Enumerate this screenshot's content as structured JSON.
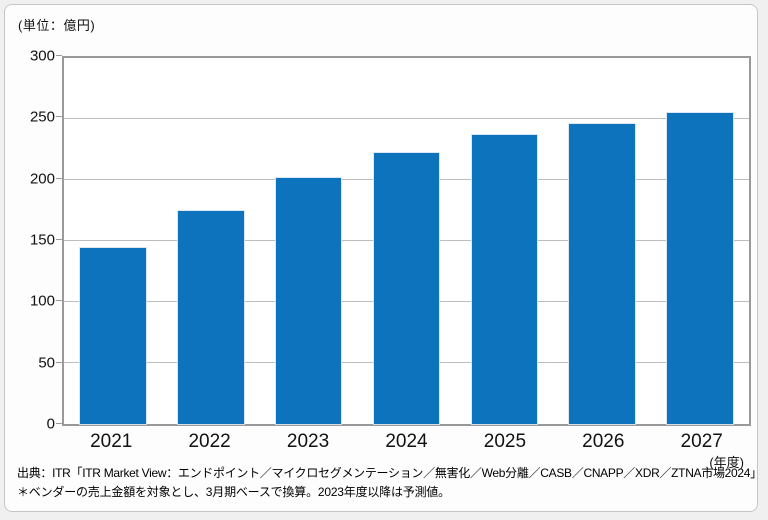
{
  "source_line1": "出典：ITR「ITR Market View：エンドポイント／マイクロセグメンテーション／無害化／Web分離／CASB／CNAPP／XDR／ZTNA市場2024」",
  "source_line2": "＊ベンダーの売上金額を対象とし、3月期ベースで換算。2023年度以降は予測値。",
  "colors": {
    "bar": "#0d73bd",
    "plot_border": "#999999",
    "gridline": "#bdbdbd",
    "card_border": "#c6c6c6",
    "page_background": "#f0f0f0"
  },
  "chart_data": {
    "type": "bar",
    "categories": [
      "2021",
      "2022",
      "2023",
      "2024",
      "2025",
      "2026",
      "2027"
    ],
    "values": [
      144,
      175,
      202,
      222,
      237,
      246,
      255
    ],
    "title": "",
    "xlabel": "(年度)",
    "ylabel": "(単位：億円)",
    "ylim": [
      0,
      300
    ],
    "ytick_step": 50,
    "grid": true,
    "legend_position": "none"
  }
}
